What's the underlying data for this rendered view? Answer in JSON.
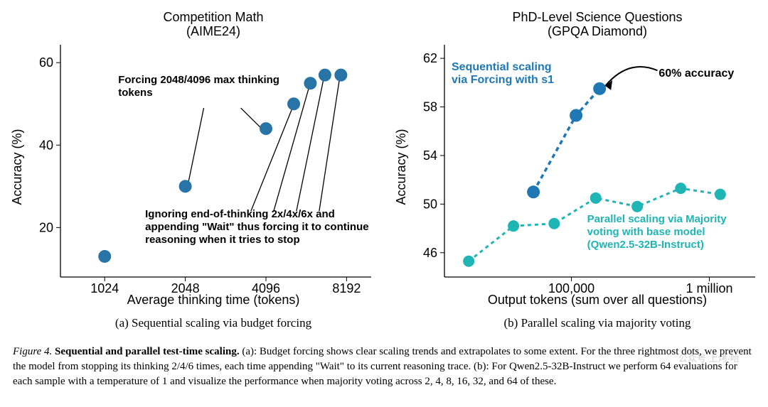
{
  "panel_a": {
    "type": "scatter",
    "title": "Competition Math",
    "subtitle": "(AIME24)",
    "xlabel": "Average thinking time (tokens)",
    "ylabel": "Accuracy (%)",
    "x_ticks": [
      1024,
      2048,
      4096,
      8192
    ],
    "x_tick_labels": [
      "1024",
      "2048",
      "4096",
      "8192"
    ],
    "y_ticks": [
      20,
      40,
      60
    ],
    "y_tick_labels": [
      "20",
      "40",
      "60"
    ],
    "xlim": [
      700,
      10000
    ],
    "ylim": [
      8,
      64
    ],
    "xscale": "log",
    "points": [
      {
        "x": 1024,
        "y": 13
      },
      {
        "x": 2048,
        "y": 30
      },
      {
        "x": 4096,
        "y": 44
      },
      {
        "x": 5200,
        "y": 50
      },
      {
        "x": 6000,
        "y": 55
      },
      {
        "x": 6800,
        "y": 57
      },
      {
        "x": 7800,
        "y": 57
      }
    ],
    "marker_color": "#2874a6",
    "marker_size": 9,
    "annotation_line_color": "#000000",
    "annotation_line_width": 1.3,
    "ann1_text": "Forcing 2048/4096 max thinking\ntokens",
    "ann1_fontweight": "bold",
    "ann1_fontsize": 15,
    "ann2_text": "Ignoring end-of-thinking 2x/4x/6x and\nappending \"Wait\" thus forcing it to continue\nreasoning when it tries to stop",
    "ann2_fontweight": "bold",
    "ann2_fontsize": 15,
    "caption": "(a)  Sequential scaling via budget forcing",
    "background_color": "#ffffff",
    "axis_color": "#000000",
    "tick_fontsize": 18,
    "label_fontsize": 18,
    "title_fontsize": 18
  },
  "panel_b": {
    "type": "line-scatter",
    "title": "PhD-Level Science Questions",
    "subtitle": "(GPQA Diamond)",
    "xlabel": "Output tokens (sum over all questions)",
    "ylabel": "Accuracy (%)",
    "x_ticks": [
      100000,
      1000000
    ],
    "x_tick_labels": [
      "100,000",
      "1 million"
    ],
    "y_ticks": [
      46,
      50,
      54,
      58,
      62
    ],
    "y_tick_labels": [
      "46",
      "50",
      "54",
      "58",
      "62"
    ],
    "xlim": [
      12000,
      2100000
    ],
    "ylim": [
      44,
      63
    ],
    "xscale": "log",
    "series": [
      {
        "name": "Sequential scaling\nvia Forcing with s1",
        "label_color": "#1f77b4",
        "line_color": "#1f77b4",
        "dash": "6,5",
        "line_width": 3.5,
        "marker_size": 9,
        "points": [
          {
            "x": 53000,
            "y": 51
          },
          {
            "x": 108000,
            "y": 57.3
          },
          {
            "x": 160000,
            "y": 59.5
          }
        ]
      },
      {
        "name": "Parallel scaling via Majority\nvoting with base model\n(Qwen2.5-32B-Instruct)",
        "label_color": "#1fb5b5",
        "line_color": "#1fb5b5",
        "dash": "5,5",
        "line_width": 3,
        "marker_size": 8,
        "points": [
          {
            "x": 18000,
            "y": 45.3
          },
          {
            "x": 38000,
            "y": 48.2
          },
          {
            "x": 75000,
            "y": 48.4
          },
          {
            "x": 150000,
            "y": 50.5
          },
          {
            "x": 300000,
            "y": 49.8
          },
          {
            "x": 620000,
            "y": 51.3
          },
          {
            "x": 1200000,
            "y": 50.8
          }
        ]
      }
    ],
    "callout_text": "60% accuracy",
    "callout_fontweight": "bold",
    "callout_fontsize": 16,
    "callout_line_color": "#000000",
    "callout_line_width": 2,
    "caption": "(b)  Parallel scaling via majority voting",
    "background_color": "#ffffff",
    "axis_color": "#000000",
    "tick_fontsize": 18,
    "label_fontsize": 18,
    "title_fontsize": 18
  },
  "figure_caption": {
    "prefix": "Figure 4.",
    "bold_title": "Sequential and parallel test-time scaling.",
    "body": " (a): Budget forcing shows clear scaling trends and extrapolates to some extent. For the three rightmost dots, we prevent the model from stopping its thinking 2/4/6 times, each time appending \"Wait\" to its current reasoning trace. (b): For Qwen2.5-32B-Instruct we perform 64 evaluations for each sample with a temperature of 1 and visualize the performance when majority voting across 2, 4, 8, 16, 32, and 64 of these."
  },
  "watermark": "公众号  上烤-哈"
}
